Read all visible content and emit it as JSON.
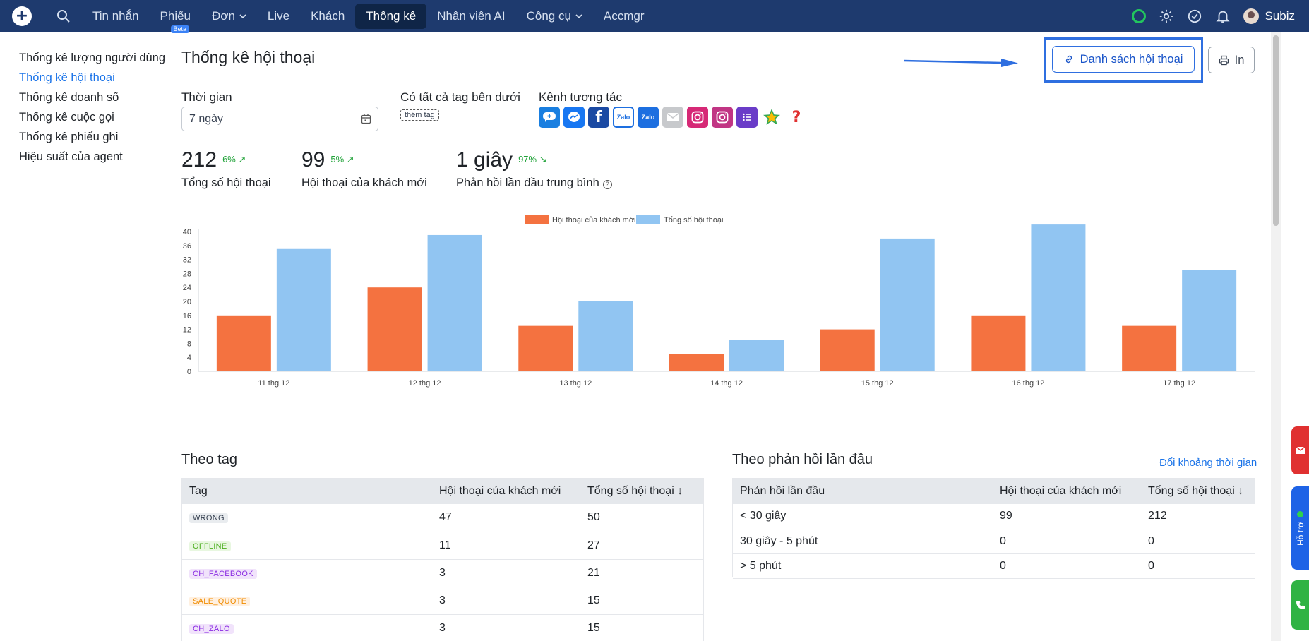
{
  "topbar": {
    "nav": [
      {
        "label": "Tin nhắn"
      },
      {
        "label": "Phiếu",
        "badge": "Beta"
      },
      {
        "label": "Đơn",
        "dropdown": true
      },
      {
        "label": "Live"
      },
      {
        "label": "Khách"
      },
      {
        "label": "Thống kê",
        "active": true
      },
      {
        "label": "Nhân viên AI"
      },
      {
        "label": "Công cụ",
        "dropdown": true
      },
      {
        "label": "Accmgr"
      }
    ],
    "user_name": "Subiz",
    "status_color": "#22c55e"
  },
  "sidebar": {
    "items": [
      {
        "label": "Thống kê lượng người dùng"
      },
      {
        "label": "Thống kê hội thoại",
        "active": true
      },
      {
        "label": "Thống kê doanh số"
      },
      {
        "label": "Thống kê cuộc gọi"
      },
      {
        "label": "Thống kê phiếu ghi"
      },
      {
        "label": "Hiệu suất của agent"
      }
    ]
  },
  "main": {
    "title": "Thống kê hội thoại",
    "list_button": "Danh sách hội thoại",
    "print_button": "In",
    "filters": {
      "time_label": "Thời gian",
      "time_value": "7 ngày",
      "tag_label": "Có tất cả tag bên dưới",
      "tag_add": "thêm tag",
      "channel_label": "Kênh tương tác",
      "channels": [
        "subiz",
        "messenger",
        "facebook",
        "zalo-personal",
        "zalo",
        "email",
        "instagram",
        "instagram-business",
        "form",
        "google-review",
        "other"
      ]
    },
    "kpis": [
      {
        "value": "212",
        "change": "6% ↗",
        "label": "Tổng số hội thoại"
      },
      {
        "value": "99",
        "change": "5% ↗",
        "label": "Hội thoại của khách mới"
      },
      {
        "value": "1 giây",
        "change": "97% ↘",
        "label": "Phản hồi lần đầu trung bình"
      }
    ]
  },
  "chart_data": {
    "type": "bar",
    "categories": [
      "11 thg 12",
      "12 thg 12",
      "13 thg 12",
      "14 thg 12",
      "15 thg 12",
      "16 thg 12",
      "17 thg 12"
    ],
    "series": [
      {
        "name": "Hội thoại của khách mới",
        "color": "#f47240",
        "values": [
          16,
          24,
          13,
          5,
          12,
          16,
          13
        ]
      },
      {
        "name": "Tổng số hội thoại",
        "color": "#91c5f2",
        "values": [
          35,
          39,
          20,
          9,
          38,
          42,
          29
        ]
      }
    ],
    "ylim": [
      0,
      40
    ],
    "yticks": [
      0,
      4,
      8,
      12,
      16,
      20,
      24,
      28,
      32,
      36,
      40
    ],
    "legend": "top-center",
    "grid": false
  },
  "by_tag": {
    "title": "Theo tag",
    "headers": [
      "Tag",
      "Hội thoại của khách mới",
      "Tổng số hội thoại ↓"
    ],
    "rows": [
      {
        "tag": "WRONG",
        "new": "47",
        "total": "50",
        "bg": "#e9ecef",
        "fg": "#374151"
      },
      {
        "tag": "OFFLINE",
        "new": "11",
        "total": "27",
        "bg": "#e8f7e0",
        "fg": "#4caf1f"
      },
      {
        "tag": "CH_FACEBOOK",
        "new": "3",
        "total": "21",
        "bg": "#f1e3fb",
        "fg": "#8a2be2"
      },
      {
        "tag": "SALE_QUOTE",
        "new": "3",
        "total": "15",
        "bg": "#fff0e0",
        "fg": "#f08c00"
      },
      {
        "tag": "CH_ZALO",
        "new": "3",
        "total": "15",
        "bg": "#f1e3fb",
        "fg": "#8a2be2"
      }
    ]
  },
  "by_first_response": {
    "title": "Theo phản hồi lần đầu",
    "link": "Đổi khoảng thời gian",
    "headers": [
      "Phản hồi lần đầu",
      "Hội thoại của khách mới",
      "Tổng số hội thoại ↓"
    ],
    "rows": [
      {
        "range": "< 30 giây",
        "new": "99",
        "total": "212"
      },
      {
        "range": "30 giây - 5 phút",
        "new": "0",
        "total": "0"
      },
      {
        "range": "> 5 phút",
        "new": "0",
        "total": "0"
      }
    ]
  },
  "widgets": {
    "support": "Hỗ trợ"
  }
}
